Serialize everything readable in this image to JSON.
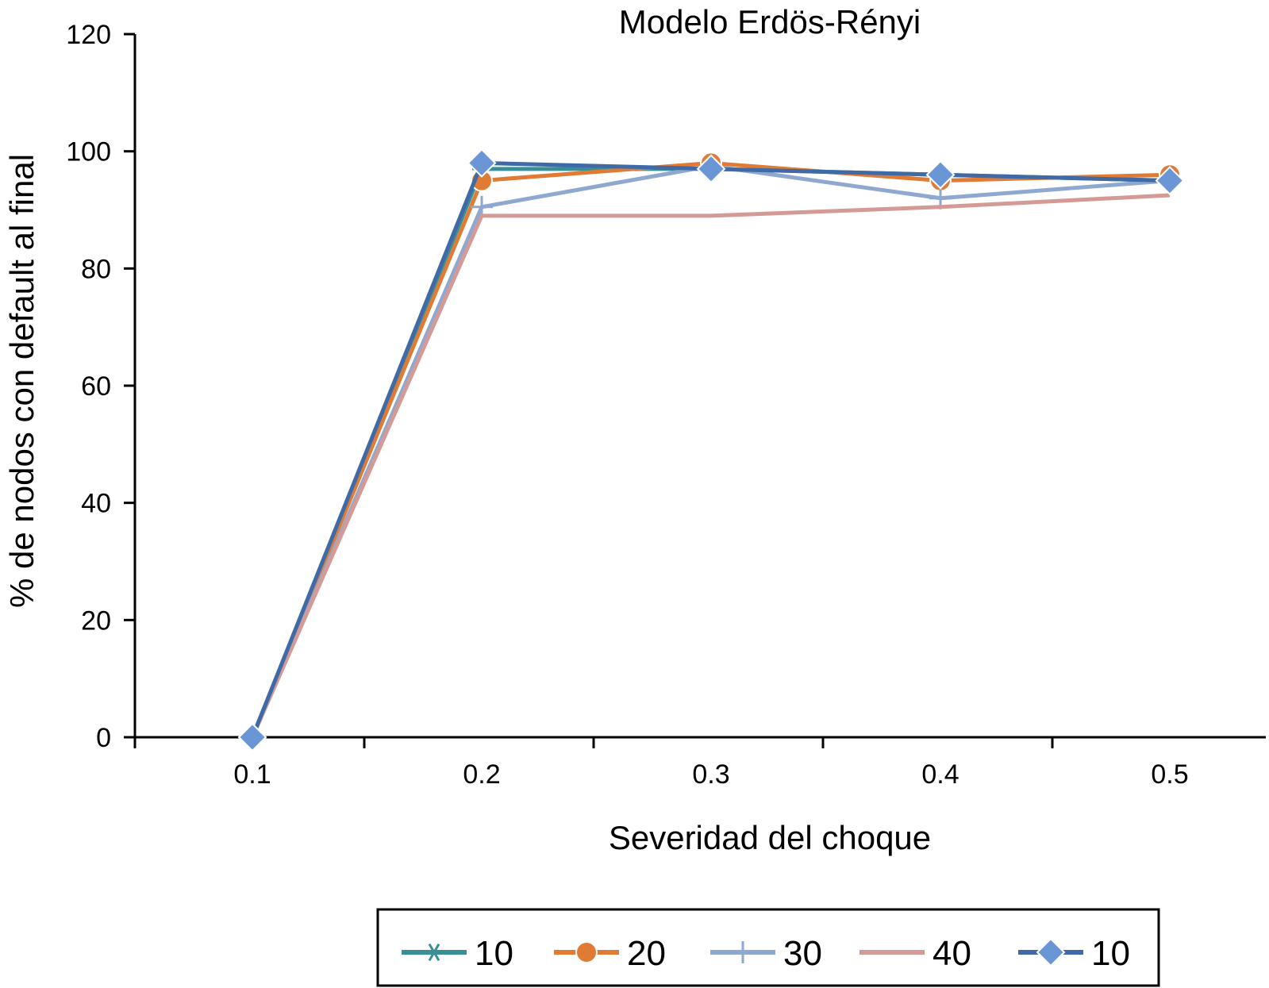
{
  "chart_data": {
    "type": "line",
    "title": "Modelo  Erdös-Rényi",
    "xlabel": "Severidad del choque",
    "ylabel": "% de nodos con default al final",
    "x": [
      "0.1",
      "0.2",
      "0.3",
      "0.4",
      "0.5"
    ],
    "ylim": [
      0,
      120
    ],
    "yticks": [
      0,
      20,
      40,
      60,
      80,
      100,
      120
    ],
    "grid": false,
    "legend_position": "bottom",
    "series": [
      {
        "name": "10",
        "values": [
          0,
          97,
          97,
          96,
          95
        ],
        "color": "#3a8f96",
        "marker": "star"
      },
      {
        "name": "20",
        "values": [
          0,
          95,
          98,
          95,
          96
        ],
        "color": "#e07b36",
        "marker": "circle"
      },
      {
        "name": "30",
        "values": [
          0,
          90.5,
          97.5,
          92,
          95
        ],
        "color": "#8fa8d0",
        "marker": "plus"
      },
      {
        "name": "40",
        "values": [
          0,
          89,
          89,
          90.5,
          92.5
        ],
        "color": "#d49a96",
        "marker": "none"
      },
      {
        "name": "10",
        "values": [
          0,
          98,
          97,
          96,
          95
        ],
        "color": "#3f6aa6",
        "marker": "diamond",
        "marker_fill": "#6b96d6"
      }
    ]
  }
}
